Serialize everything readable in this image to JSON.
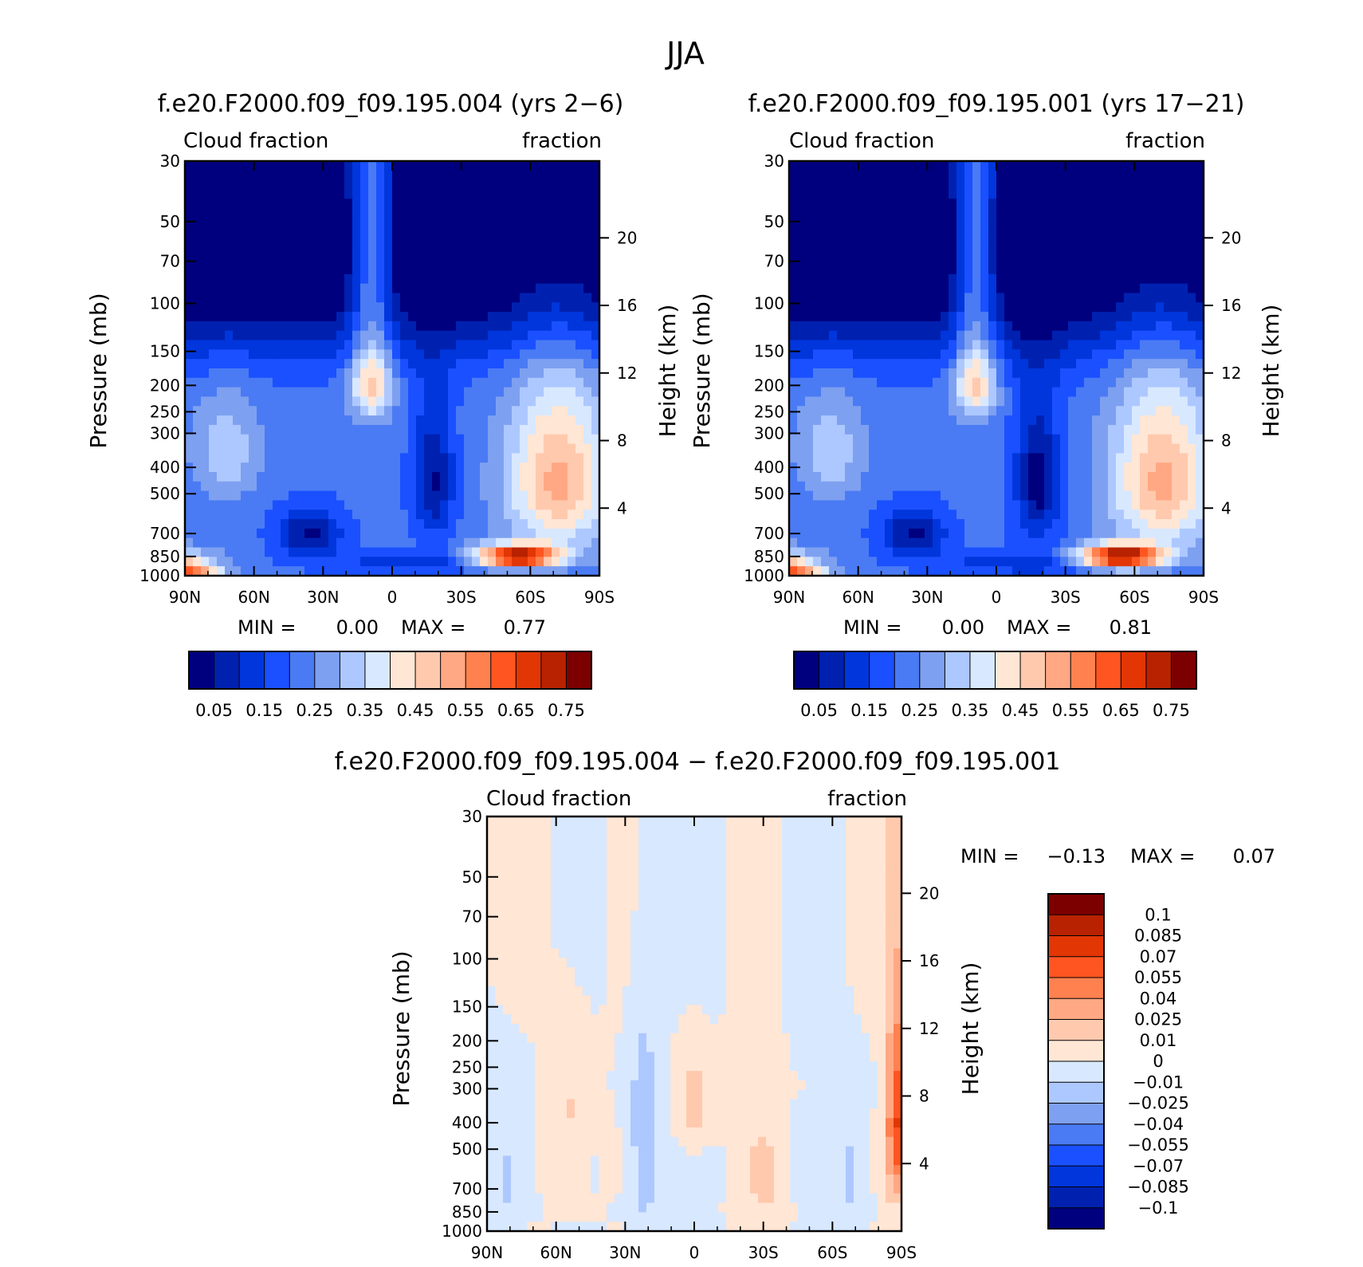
{
  "figure": {
    "title": "JJA"
  },
  "colors": {
    "seq": [
      "#00007f",
      "#0021b0",
      "#0036dc",
      "#1a50ff",
      "#4a7bf4",
      "#7ea0f0",
      "#adc8ff",
      "#d8e8ff",
      "#ffe6d5",
      "#ffc9ae",
      "#ffa883",
      "#ff8150",
      "#ff5520",
      "#e23605",
      "#b82200",
      "#7d0000"
    ],
    "div": [
      "#00007f",
      "#0021b0",
      "#0036dc",
      "#1a50ff",
      "#4a7bf4",
      "#7ea0f0",
      "#adc8ff",
      "#d8e8ff",
      "#ffe6d5",
      "#ffc9ae",
      "#ffa883",
      "#ff8150",
      "#ff5520",
      "#e23605",
      "#b82200",
      "#7d0000"
    ]
  },
  "chart_data": [
    {
      "type": "heatmap",
      "title": "f.e20.F2000.f09_f09.195.004 (yrs 2−6)",
      "left_label": "Cloud fraction",
      "right_label": "fraction",
      "ylabel": "Pressure (mb)",
      "y2label": "Height (km)",
      "x_ticks": [
        "90N",
        "60N",
        "30N",
        "0",
        "30S",
        "60S",
        "90S"
      ],
      "y_ticks": [
        "30",
        "50",
        "70",
        "100",
        "150",
        "200",
        "250",
        "300",
        "400",
        "500",
        "700",
        "850",
        "1000"
      ],
      "y2_ticks": [
        "20",
        "16",
        "12",
        "8",
        "4"
      ],
      "min_label": "MIN =",
      "min_value": "0.00",
      "max_label": "MAX =",
      "max_value": "0.77",
      "colorbar_labels": [
        "0.05",
        "0.15",
        "0.25",
        "0.35",
        "0.45",
        "0.55",
        "0.65",
        "0.75"
      ],
      "levels": [
        0.05,
        0.1,
        0.15,
        0.2,
        0.25,
        0.3,
        0.35,
        0.4,
        0.45,
        0.5,
        0.55,
        0.6,
        0.65,
        0.7,
        0.75
      ]
    },
    {
      "type": "heatmap",
      "title": "f.e20.F2000.f09_f09.195.001 (yrs 17−21)",
      "left_label": "Cloud fraction",
      "right_label": "fraction",
      "ylabel": "Pressure (mb)",
      "y2label": "Height (km)",
      "x_ticks": [
        "90N",
        "60N",
        "30N",
        "0",
        "30S",
        "60S",
        "90S"
      ],
      "y_ticks": [
        "30",
        "50",
        "70",
        "100",
        "150",
        "200",
        "250",
        "300",
        "400",
        "500",
        "700",
        "850",
        "1000"
      ],
      "y2_ticks": [
        "20",
        "16",
        "12",
        "8",
        "4"
      ],
      "min_label": "MIN =",
      "min_value": "0.00",
      "max_label": "MAX =",
      "max_value": "0.81",
      "colorbar_labels": [
        "0.05",
        "0.15",
        "0.25",
        "0.35",
        "0.45",
        "0.55",
        "0.65",
        "0.75"
      ],
      "levels": [
        0.05,
        0.1,
        0.15,
        0.2,
        0.25,
        0.3,
        0.35,
        0.4,
        0.45,
        0.5,
        0.55,
        0.6,
        0.65,
        0.7,
        0.75
      ]
    },
    {
      "type": "heatmap",
      "title": "f.e20.F2000.f09_f09.195.004 − f.e20.F2000.f09_f09.195.001",
      "left_label": "Cloud fraction",
      "right_label": "fraction",
      "ylabel": "Pressure (mb)",
      "y2label": "Height (km)",
      "x_ticks": [
        "90N",
        "60N",
        "30N",
        "0",
        "30S",
        "60S",
        "90S"
      ],
      "y_ticks": [
        "30",
        "50",
        "70",
        "100",
        "150",
        "200",
        "250",
        "300",
        "400",
        "500",
        "700",
        "850",
        "1000"
      ],
      "y2_ticks": [
        "20",
        "16",
        "12",
        "8",
        "4"
      ],
      "min_label": "MIN =",
      "min_value": "−0.13",
      "max_label": "MAX =",
      "max_value": "0.07",
      "colorbar_labels": [
        "0.1",
        "0.085",
        "0.07",
        "0.055",
        "0.04",
        "0.025",
        "0.01",
        "0",
        "−0.01",
        "−0.025",
        "−0.04",
        "−0.055",
        "−0.07",
        "−0.085",
        "−0.1"
      ],
      "levels": [
        -0.1,
        -0.085,
        -0.07,
        -0.055,
        -0.04,
        -0.025,
        -0.01,
        0,
        0.01,
        0.025,
        0.04,
        0.055,
        0.07,
        0.085,
        0.1
      ]
    }
  ]
}
